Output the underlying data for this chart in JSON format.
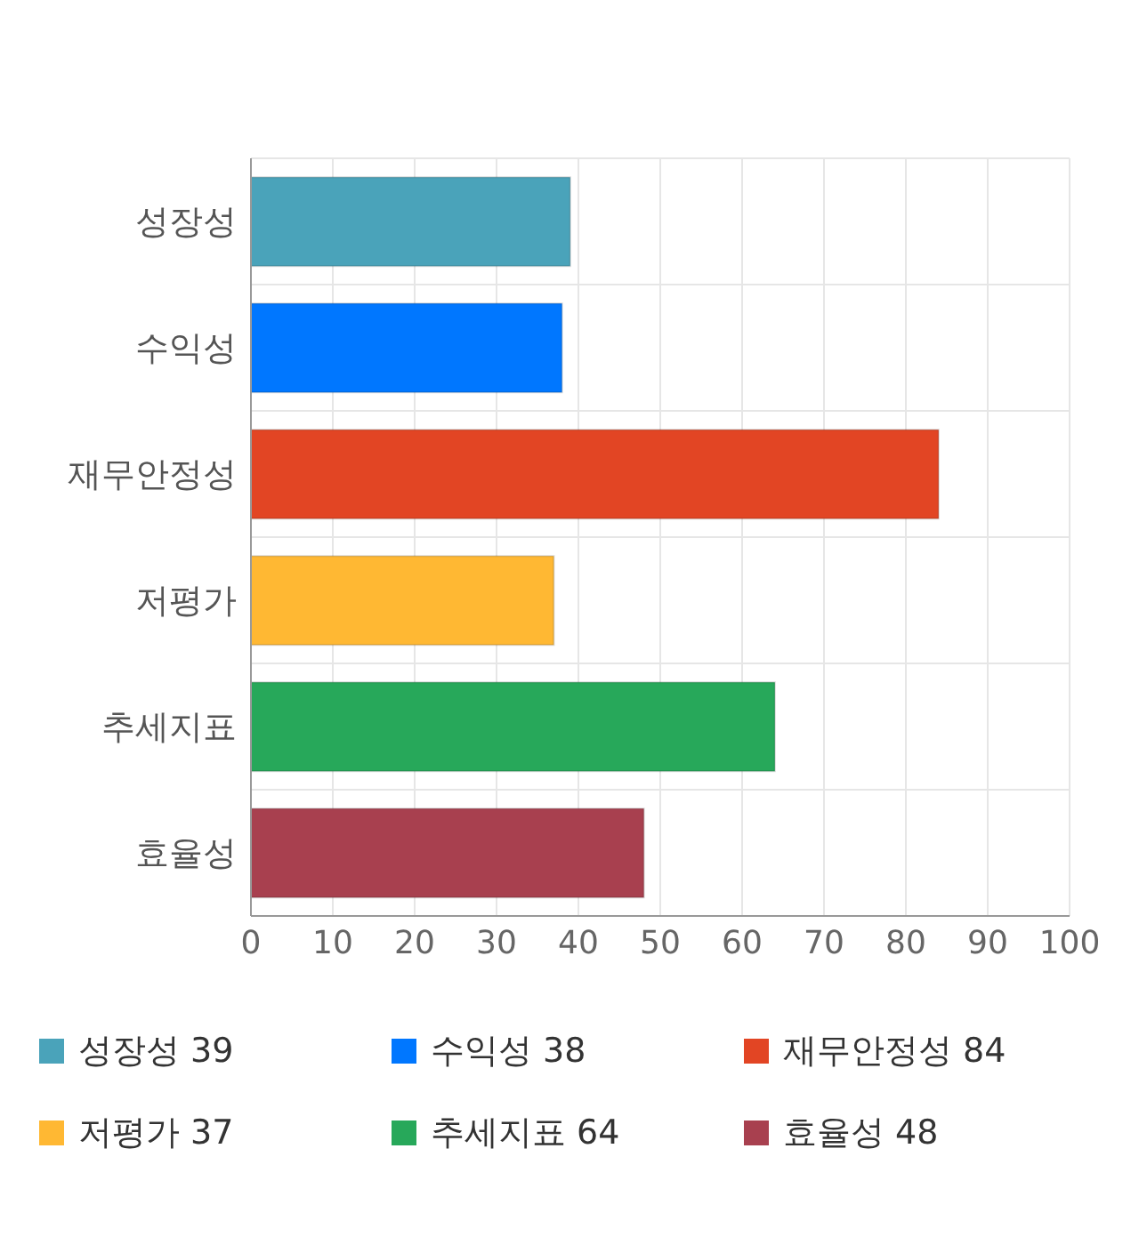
{
  "chart_data": {
    "type": "bar",
    "orientation": "horizontal",
    "stacked": true,
    "categories": [
      "성장성",
      "수익성",
      "재무안정성",
      "저평가",
      "추세지표",
      "효율성"
    ],
    "series": [
      {
        "name": "성장성 39",
        "color": "#4aa3ba",
        "values": [
          39,
          null,
          null,
          null,
          null,
          null
        ]
      },
      {
        "name": "수익성 38",
        "color": "#0077ff",
        "values": [
          null,
          38,
          null,
          null,
          null,
          null
        ]
      },
      {
        "name": "재무안정성 84",
        "color": "#e24524",
        "values": [
          null,
          null,
          84,
          null,
          null,
          null
        ]
      },
      {
        "name": "저평가 37",
        "color": "#ffb833",
        "values": [
          null,
          null,
          null,
          37,
          null,
          null
        ]
      },
      {
        "name": "추세지표 64",
        "color": "#27a85a",
        "values": [
          null,
          null,
          null,
          null,
          64,
          null
        ]
      },
      {
        "name": "효율성 48",
        "color": "#a8404f",
        "values": [
          null,
          null,
          null,
          null,
          null,
          48
        ]
      }
    ],
    "xlim": [
      0,
      100
    ],
    "xticks": [
      0,
      10,
      20,
      30,
      40,
      50,
      60,
      70,
      80,
      90,
      100
    ],
    "grid": true,
    "legend": "bottom"
  }
}
